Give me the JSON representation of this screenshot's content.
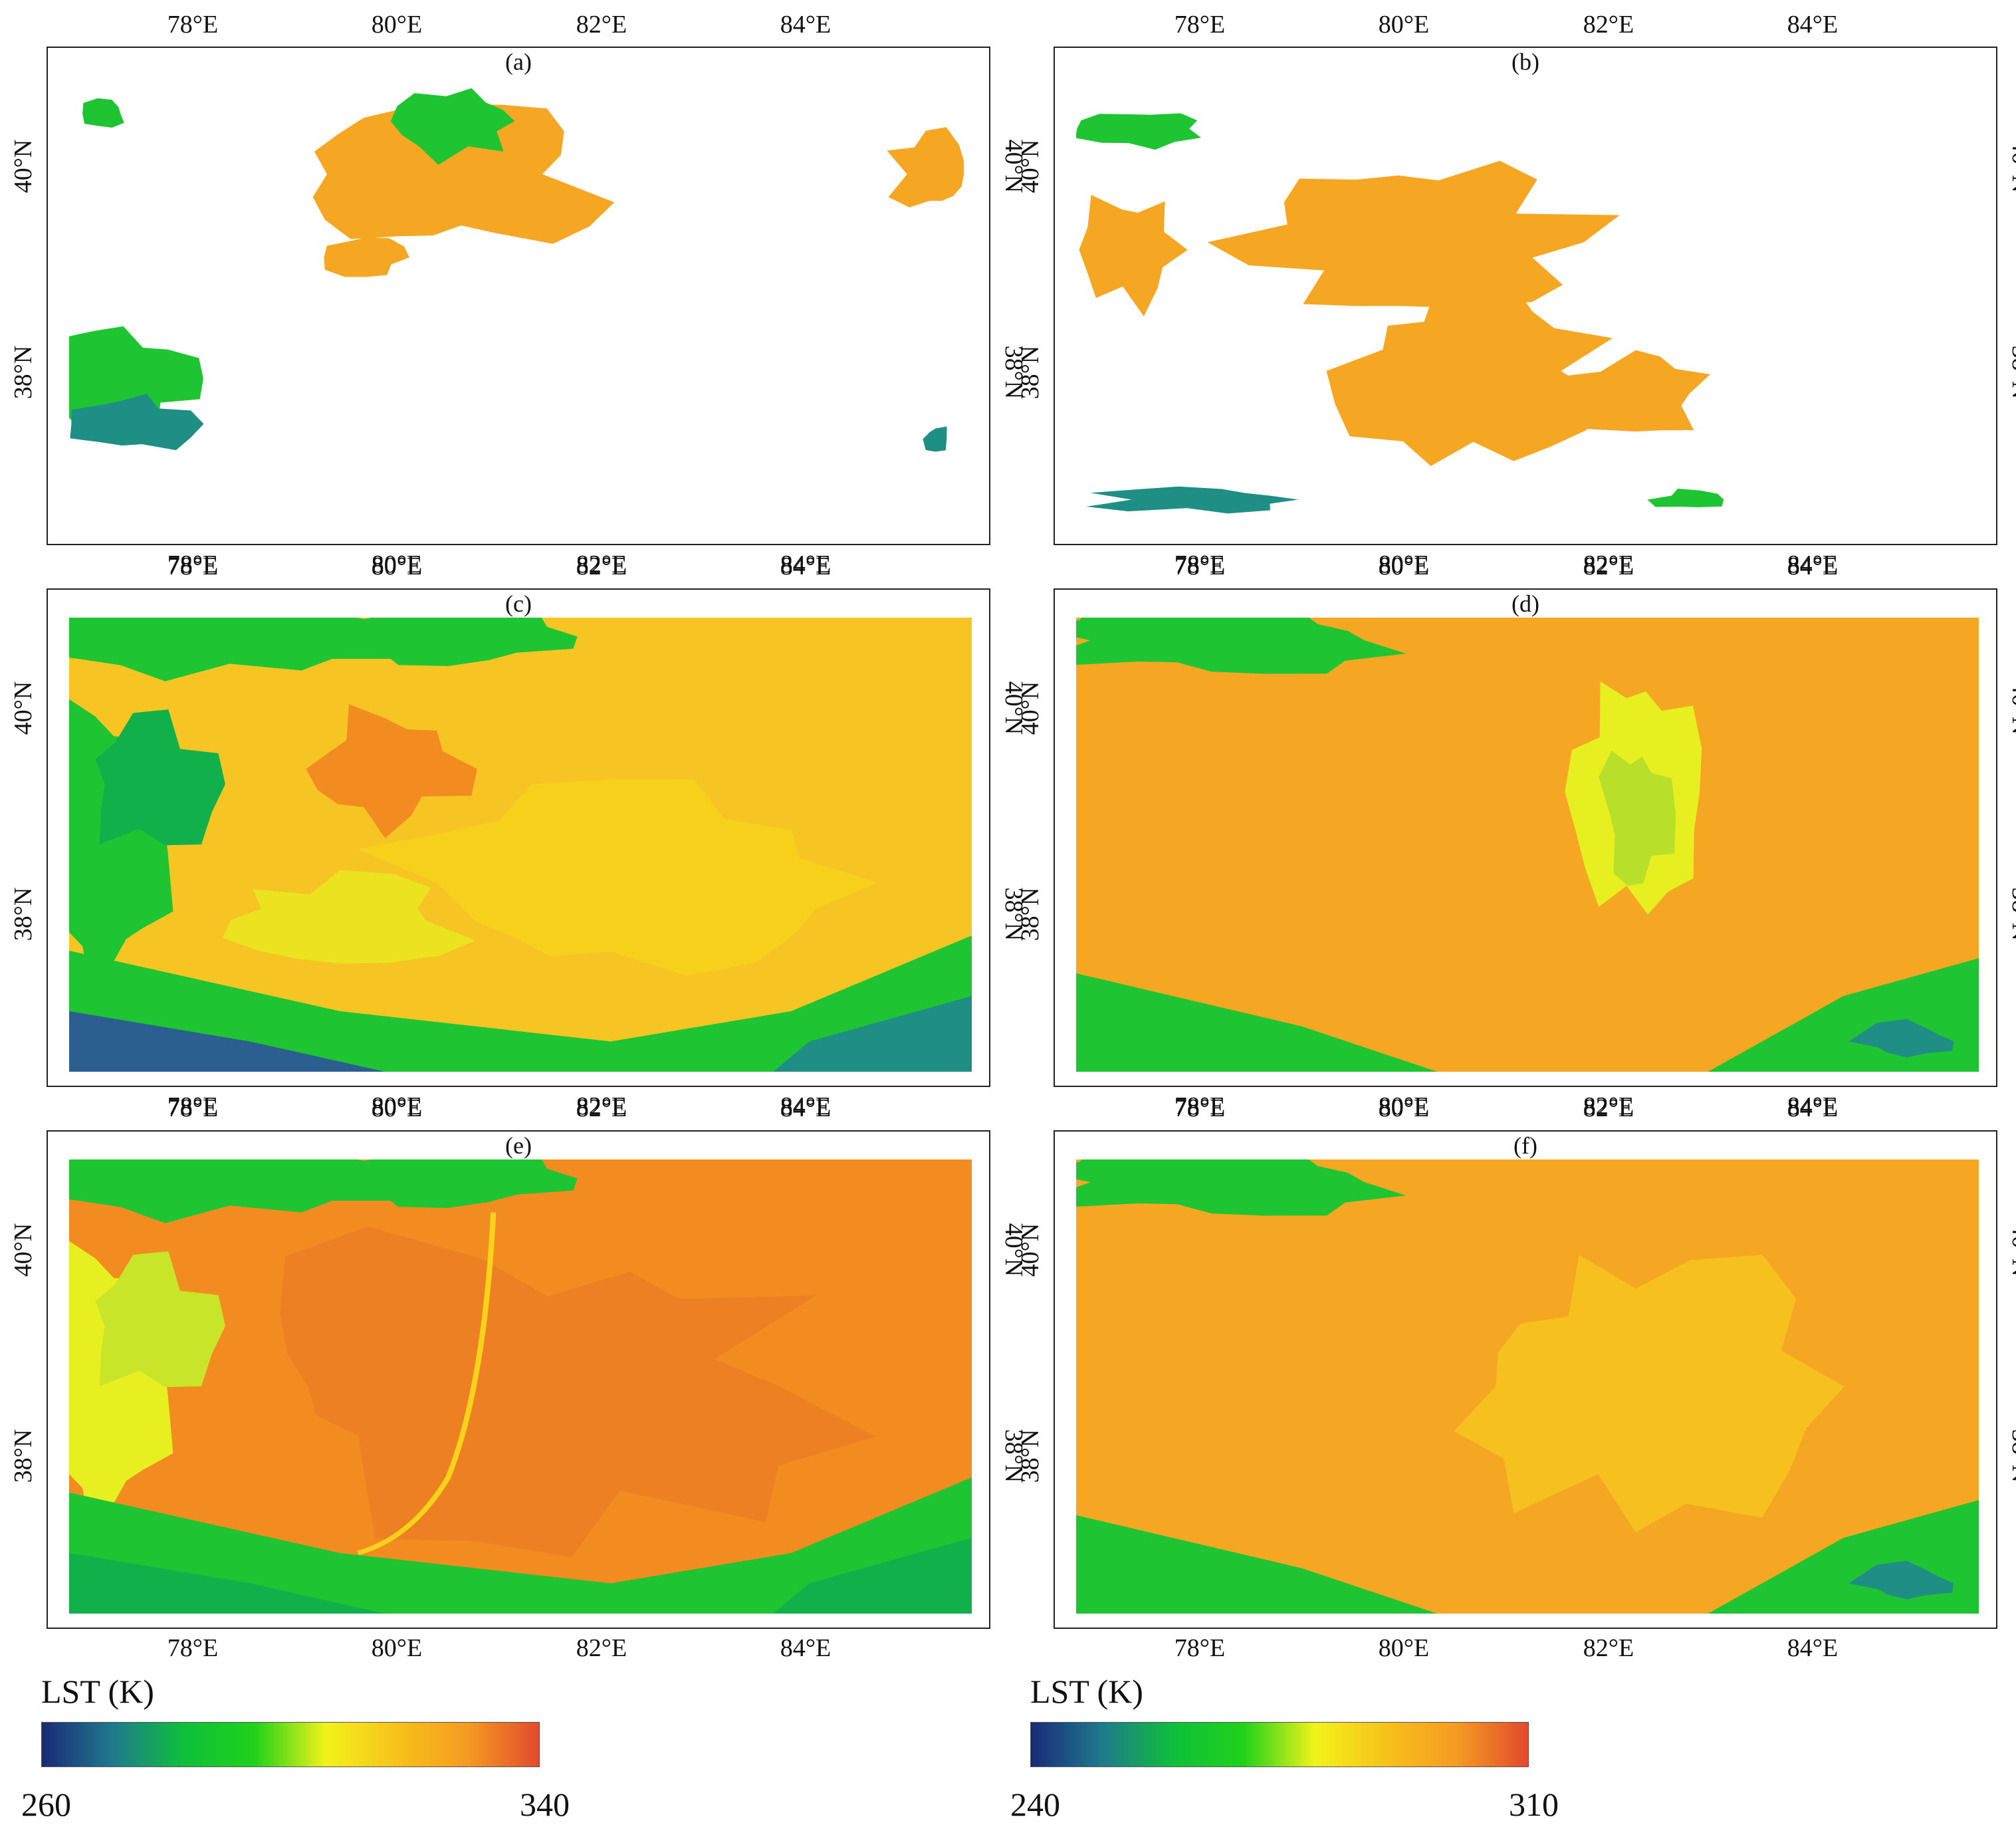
{
  "figure": {
    "panels": [
      {
        "id": "a",
        "label": "(a)",
        "coverage": "sparse-a",
        "scale": "left"
      },
      {
        "id": "b",
        "label": "(b)",
        "coverage": "sparse-b",
        "scale": "right"
      },
      {
        "id": "c",
        "label": "(c)",
        "coverage": "full-c",
        "scale": "left"
      },
      {
        "id": "d",
        "label": "(d)",
        "coverage": "full-d",
        "scale": "right"
      },
      {
        "id": "e",
        "label": "(e)",
        "coverage": "full-e",
        "scale": "left"
      },
      {
        "id": "f",
        "label": "(f)",
        "coverage": "full-f",
        "scale": "right"
      }
    ],
    "lon_ticks": [
      "78°E",
      "80°E",
      "82°E",
      "84°E"
    ],
    "lat_ticks": [
      "40°N",
      "38°N"
    ],
    "extent": {
      "lon_min": 76.7,
      "lon_max": 85.9,
      "lat_min": 36.4,
      "lat_max": 41.2
    }
  },
  "colorbars": [
    {
      "id": "left",
      "title": "LST (K)",
      "min": "260",
      "max": "340",
      "colors": [
        "#1a2a78",
        "#1f7a8c",
        "#0fbf3c",
        "#20d21a",
        "#f2f21a",
        "#f7c21a",
        "#f59a22",
        "#e24a2c"
      ]
    },
    {
      "id": "right",
      "title": "LST (K)",
      "min": "240",
      "max": "310",
      "colors": [
        "#1a2a78",
        "#1f7a8c",
        "#0fbf3c",
        "#20d21a",
        "#f2f21a",
        "#f7c21a",
        "#f59a22",
        "#e24a2c"
      ]
    }
  ]
}
